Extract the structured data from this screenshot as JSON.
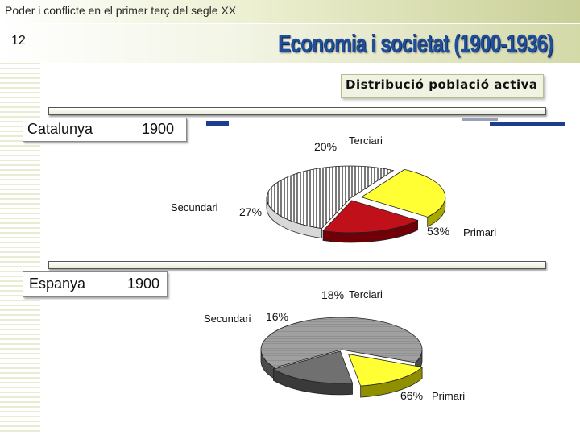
{
  "header": {
    "text_a": "Poder i conflicte",
    "text_b": "en el primer terç del segle XX",
    "slide_number": "12",
    "title": "Economia i societat (1900-1936)"
  },
  "section": {
    "title": "Distribució població activa"
  },
  "chart_data": [
    {
      "type": "pie",
      "region": "Catalunya",
      "year": "1900",
      "categories": [
        "Primari",
        "Secundari",
        "Terciari"
      ],
      "values": [
        53,
        27,
        20
      ],
      "value_labels": [
        "53%",
        "27%",
        "20%"
      ],
      "colors": [
        "#ffffff",
        "#ffff33",
        "#c0101a"
      ]
    },
    {
      "type": "pie",
      "region": "Espanya",
      "year": "1900",
      "categories": [
        "Primari",
        "Secundari",
        "Terciari"
      ],
      "values": [
        66,
        16,
        18
      ],
      "value_labels": [
        "66%",
        "16%",
        "18%"
      ],
      "colors": [
        "#9a9a9a",
        "#ffff33",
        "#707070"
      ]
    }
  ]
}
